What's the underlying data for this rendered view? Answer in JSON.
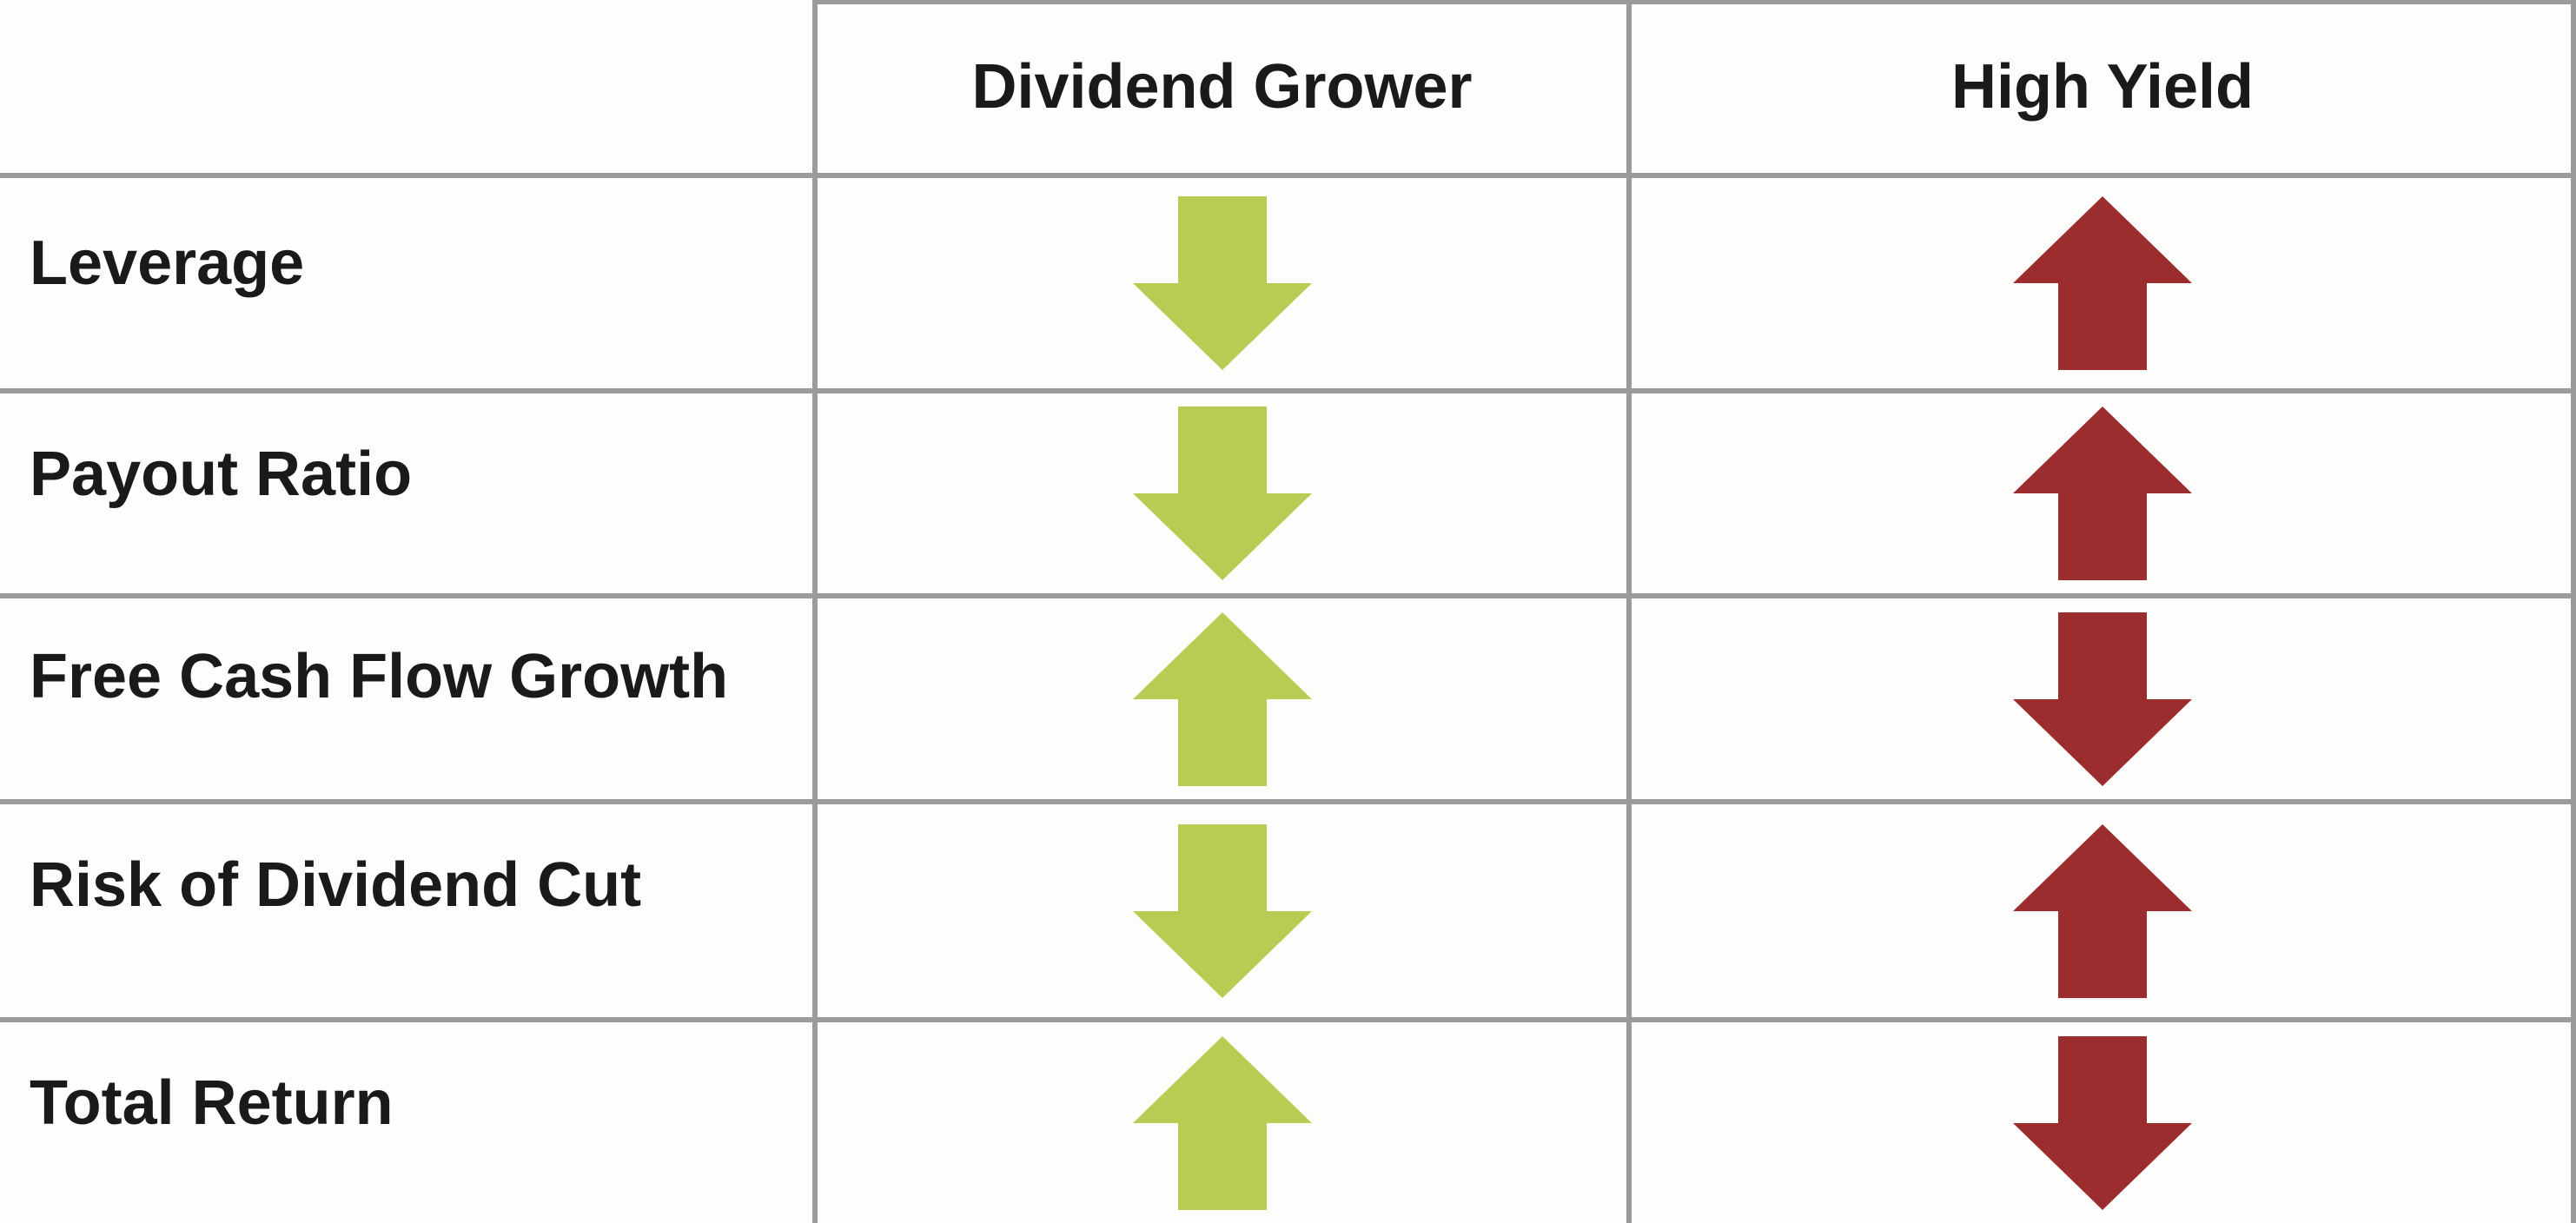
{
  "columns": [
    "Dividend Grower",
    "High Yield"
  ],
  "rows": [
    {
      "label": "Leverage",
      "dividend_grower": "down",
      "high_yield": "up"
    },
    {
      "label": "Payout Ratio",
      "dividend_grower": "down",
      "high_yield": "up"
    },
    {
      "label": "Free Cash Flow Growth",
      "dividend_grower": "up",
      "high_yield": "down"
    },
    {
      "label": "Risk of Dividend Cut",
      "dividend_grower": "down",
      "high_yield": "up"
    },
    {
      "label": "Total Return",
      "dividend_grower": "up",
      "high_yield": "down"
    }
  ],
  "colors": {
    "dividend_grower_arrow": "#b7cc52",
    "high_yield_arrow": "#9b2d2f",
    "grid": "#9a9a9a",
    "text": "#1a1a1a"
  },
  "icons": {
    "up": "arrow-up-icon",
    "down": "arrow-down-icon"
  }
}
